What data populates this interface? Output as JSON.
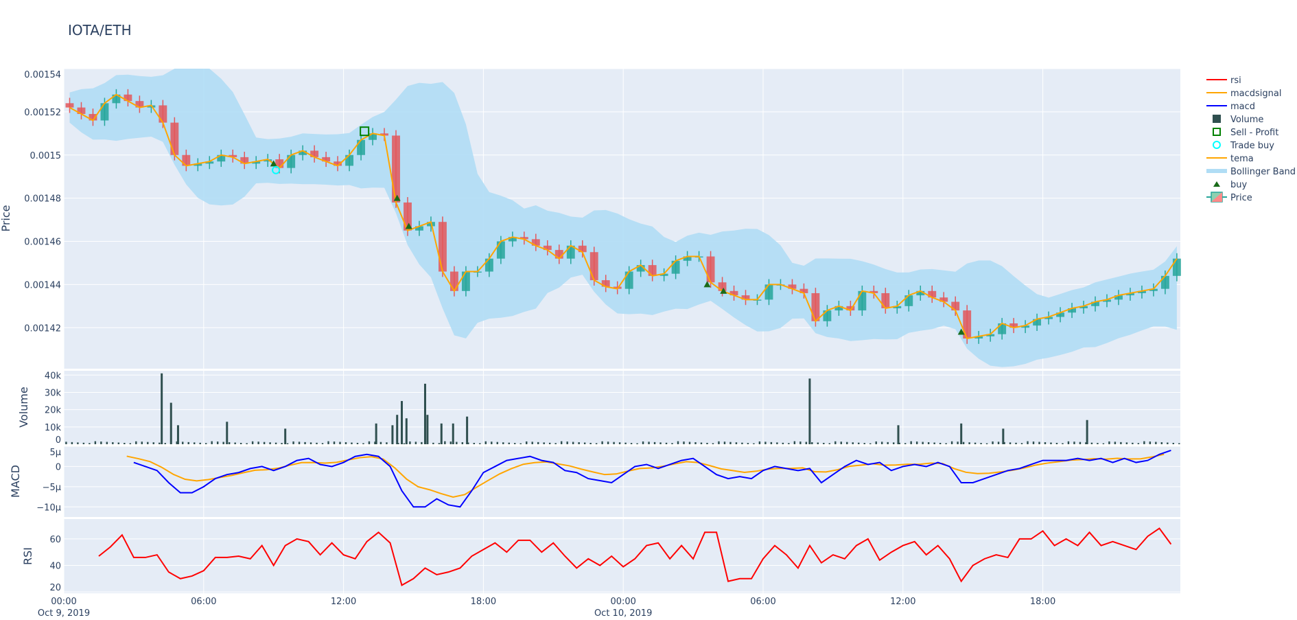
{
  "title": "IOTA/ETH",
  "colors": {
    "increasing": "#26a69a",
    "decreasing": "#e3575b",
    "band": "#b0ddf5",
    "tema": "#ffa500",
    "macd": "#0000ff",
    "macdsignal": "#ffa500",
    "rsi": "#ff0000",
    "volume": "#2f4f4f",
    "buy": "#1a6b1a",
    "trade_buy": "#00ffff",
    "sell_profit": "#008000",
    "plot_bg": "#e5ecf6",
    "grid": "#ffffff"
  },
  "chart_data": {
    "type": "candlestick",
    "title": "IOTA/ETH",
    "interval_hours": 0.5,
    "x_ticks": [
      {
        "hour": 0,
        "label": "00:00",
        "date": "Oct 9, 2019"
      },
      {
        "hour": 6,
        "label": "06:00",
        "date": ""
      },
      {
        "hour": 12,
        "label": "12:00",
        "date": ""
      },
      {
        "hour": 18,
        "label": "18:00",
        "date": ""
      },
      {
        "hour": 24,
        "label": "00:00",
        "date": "Oct 10, 2019"
      },
      {
        "hour": 30,
        "label": "06:00",
        "date": ""
      },
      {
        "hour": 36,
        "label": "12:00",
        "date": ""
      },
      {
        "hour": 42,
        "label": "18:00",
        "date": ""
      }
    ],
    "xlim_hours": [
      0,
      47.9
    ],
    "price": {
      "ylabel": "Price",
      "ylim": [
        0.001401,
        0.00154
      ],
      "ticks": [
        {
          "v": 0.00142,
          "label": "0.00142"
        },
        {
          "v": 0.00144,
          "label": "0.00144"
        },
        {
          "v": 0.00146,
          "label": "0.00146"
        },
        {
          "v": 0.00148,
          "label": "0.00148"
        },
        {
          "v": 0.0015,
          "label": "0.0015"
        },
        {
          "v": 0.00152,
          "label": "0.00152"
        },
        {
          "v": 0.00154,
          "label": "0.00154"
        }
      ],
      "close": [
        0.001522,
        0.001519,
        0.001516,
        0.001524,
        0.001528,
        0.001525,
        0.001522,
        0.001523,
        0.001515,
        0.0015,
        0.001495,
        0.001496,
        0.001497,
        0.0015,
        0.001499,
        0.001496,
        0.001497,
        0.001498,
        0.001494,
        0.0015,
        0.001502,
        0.001499,
        0.001497,
        0.001495,
        0.0015,
        0.001507,
        0.00151,
        0.001509,
        0.001478,
        0.001465,
        0.001467,
        0.001469,
        0.001446,
        0.001437,
        0.001446,
        0.001446,
        0.001452,
        0.00146,
        0.001462,
        0.001461,
        0.001458,
        0.001456,
        0.001452,
        0.001458,
        0.001455,
        0.001442,
        0.001439,
        0.001438,
        0.001446,
        0.001449,
        0.001444,
        0.001445,
        0.001451,
        0.001453,
        0.001453,
        0.001441,
        0.001437,
        0.001435,
        0.001433,
        0.001433,
        0.00144,
        0.00144,
        0.001438,
        0.001436,
        0.001423,
        0.001428,
        0.00143,
        0.001428,
        0.001437,
        0.001436,
        0.001429,
        0.00143,
        0.001435,
        0.001437,
        0.001434,
        0.001432,
        0.001428,
        0.001415,
        0.001416,
        0.001417,
        0.001422,
        0.00142,
        0.001421,
        0.001424,
        0.001425,
        0.001427,
        0.001429,
        0.00143,
        0.001432,
        0.001433,
        0.001435,
        0.001436,
        0.001437,
        0.001438,
        0.001444,
        0.001452
      ],
      "buy": [
        {
          "hour": 9.0,
          "price": 0.001496
        },
        {
          "hour": 14.3,
          "price": 0.00148
        },
        {
          "hour": 14.8,
          "price": 0.001467
        },
        {
          "hour": 27.6,
          "price": 0.00144
        },
        {
          "hour": 28.3,
          "price": 0.001437
        },
        {
          "hour": 38.5,
          "price": 0.001418
        }
      ],
      "trade_buy": [
        {
          "hour": 9.1,
          "price": 0.001493
        }
      ],
      "sell_profit": [
        {
          "hour": 12.9,
          "price": 0.001511
        }
      ]
    },
    "volume": {
      "ylabel": "Volume",
      "ylim": [
        0,
        42500
      ],
      "ticks": [
        {
          "v": 0,
          "label": "0"
        },
        {
          "v": 10000,
          "label": "10k"
        },
        {
          "v": 20000,
          "label": "20k"
        },
        {
          "v": 30000,
          "label": "30k"
        },
        {
          "v": 40000,
          "label": "40k"
        }
      ],
      "spikes": [
        [
          4.2,
          41000
        ],
        [
          4.6,
          24000
        ],
        [
          4.9,
          11000
        ],
        [
          7.0,
          13000
        ],
        [
          9.5,
          9000
        ],
        [
          13.4,
          12000
        ],
        [
          14.1,
          11000
        ],
        [
          14.3,
          17000
        ],
        [
          14.5,
          25000
        ],
        [
          14.7,
          15000
        ],
        [
          15.5,
          35000
        ],
        [
          15.6,
          17000
        ],
        [
          16.2,
          12000
        ],
        [
          16.7,
          12000
        ],
        [
          17.3,
          16000
        ],
        [
          32.0,
          38000
        ],
        [
          35.8,
          11000
        ],
        [
          38.5,
          12000
        ],
        [
          40.3,
          9000
        ],
        [
          43.9,
          14000
        ]
      ]
    },
    "macd": {
      "ylabel": "MACD",
      "ylim": [
        -1.25e-05,
        5e-06
      ],
      "ticks": [
        {
          "v": 5e-06,
          "label": "5µ"
        },
        {
          "v": 0,
          "label": "0"
        },
        {
          "v": -5e-06,
          "label": "−5µ"
        },
        {
          "v": -1e-05,
          "label": "−10µ"
        }
      ],
      "start_hour": 3,
      "macd_micro": [
        1,
        0,
        -1,
        -4,
        -6.5,
        -6.5,
        -5,
        -3,
        -2,
        -1.5,
        -0.5,
        0,
        -1,
        0,
        1.5,
        2,
        0.5,
        0,
        1,
        2.5,
        3,
        2.5,
        0,
        -6,
        -10,
        -10,
        -8,
        -9.5,
        -10,
        -6,
        -1.5,
        0,
        1.5,
        2,
        2.5,
        1.5,
        1,
        -1,
        -1.5,
        -3,
        -3.5,
        -4,
        -2,
        0,
        0.5,
        -0.5,
        0.5,
        1.5,
        2,
        0,
        -2,
        -3,
        -2.5,
        -3,
        -1,
        0,
        -0.5,
        -1,
        -0.5,
        -4,
        -2,
        0,
        1.5,
        0.5,
        1,
        -1,
        0,
        0.5,
        0,
        1,
        0,
        -4,
        -4,
        -3,
        -2,
        -1,
        -0.5,
        0.5,
        1.5,
        1.5,
        1.5,
        2,
        1.5,
        2,
        1,
        2,
        1,
        1.5,
        3,
        4
      ]
    },
    "rsi": {
      "ylabel": "RSI",
      "ylim": [
        19,
        75
      ],
      "ticks": [
        {
          "v": 20,
          "label": "20"
        },
        {
          "v": 40,
          "label": "40"
        },
        {
          "v": 60,
          "label": "60"
        }
      ],
      "start_hour": 1.5,
      "values": [
        47,
        54,
        63,
        46,
        46,
        48,
        35,
        30,
        32,
        36,
        46,
        46,
        47,
        45,
        55,
        40,
        55,
        60,
        58,
        48,
        57,
        48,
        45,
        58,
        65,
        57,
        25,
        30,
        38,
        33,
        35,
        38,
        47,
        52,
        57,
        50,
        59,
        59,
        50,
        57,
        47,
        38,
        45,
        40,
        47,
        39,
        45,
        55,
        57,
        45,
        55,
        45,
        65,
        65,
        28,
        30,
        30,
        45,
        55,
        48,
        38,
        55,
        42,
        48,
        45,
        55,
        60,
        44,
        50,
        55,
        58,
        48,
        55,
        45,
        28,
        40,
        45,
        48,
        46,
        60,
        60,
        66,
        55,
        60,
        55,
        65,
        55,
        58,
        55,
        52,
        62,
        68,
        56
      ]
    },
    "legend": [
      {
        "name": "rsi",
        "kind": "line",
        "color": "#ff0000"
      },
      {
        "name": "macdsignal",
        "kind": "line",
        "color": "#ffa500"
      },
      {
        "name": "macd",
        "kind": "line",
        "color": "#0000ff"
      },
      {
        "name": "Volume",
        "kind": "square",
        "color": "#2f4f4f"
      },
      {
        "name": "Sell - Profit",
        "kind": "open-square",
        "color": "#008000"
      },
      {
        "name": "Trade buy",
        "kind": "open-circle",
        "color": "#00ffff"
      },
      {
        "name": "tema",
        "kind": "line",
        "color": "#ffa500"
      },
      {
        "name": "Bollinger Band",
        "kind": "band",
        "color": "#b0ddf5"
      },
      {
        "name": "buy",
        "kind": "triangle",
        "color": "#1a6b1a"
      },
      {
        "name": "Price",
        "kind": "candle",
        "color": "#26a69a"
      }
    ]
  }
}
